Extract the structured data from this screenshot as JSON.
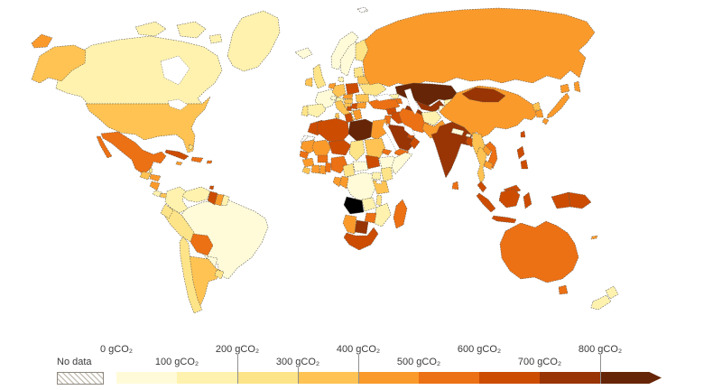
{
  "legend": {
    "no_data_label": "No data",
    "unit": "gCO₂",
    "top_labels": [
      "0 gCO₂",
      "200 gCO₂",
      "400 gCO₂",
      "600 gCO₂",
      "800 gCO₂"
    ],
    "bottom_labels": [
      "100 gCO₂",
      "300 gCO₂",
      "500 gCO₂",
      "700 gCO₂"
    ],
    "ticks": [
      200,
      300,
      400,
      800
    ],
    "bins": [
      {
        "range": "0-100",
        "color": "#fffbd9"
      },
      {
        "range": "100-200",
        "color": "#fff2ae"
      },
      {
        "range": "200-300",
        "color": "#fee488"
      },
      {
        "range": "300-400",
        "color": "#fec352"
      },
      {
        "range": "400-500",
        "color": "#fa9a2b"
      },
      {
        "range": "500-600",
        "color": "#ec7014"
      },
      {
        "range": "600-700",
        "color": "#cc4c02"
      },
      {
        "range": "700-800",
        "color": "#993404"
      },
      {
        "range": "800+",
        "color": "#662506"
      }
    ]
  },
  "map": {
    "water_color": "#ffffff",
    "countries": {
      "canada": 2,
      "greenland": 2,
      "usa": 4,
      "mexico": 6,
      "guatemala": 4,
      "belize": 3,
      "honduras": 5,
      "nicaragua": 5,
      "costa-rica": 2,
      "panama": 4,
      "cuba": 7,
      "jamaica": 5,
      "hispaniola": 6,
      "puerto-rico": 6,
      "bahamas": 3,
      "trinidad": 7,
      "colombia": 2,
      "venezuela": 2,
      "guyana": 7,
      "suriname": 5,
      "french-guiana": 2,
      "ecuador": 3,
      "peru": 3,
      "brazil": 1,
      "bolivia": 6,
      "paraguay": 1,
      "chile": 3,
      "argentina": 4,
      "uruguay": 3,
      "iceland": 1,
      "norway": 1,
      "sweden": 1,
      "finland": 3,
      "denmark": 2,
      "uk": 3,
      "ireland": 4,
      "france": 1,
      "spain": 2,
      "portugal": 3,
      "belgium-netherlands": 5,
      "germany": 4,
      "poland": 7,
      "czechia": 5,
      "austria": 2,
      "hungary": 4,
      "switzerland": 1,
      "italy": 4,
      "croatia": 4,
      "bosnia": 7,
      "serbia": 7,
      "albania": 2,
      "greece": 5,
      "bulgaria": 5,
      "romania": 4,
      "ukraine": 3,
      "belarus": 4,
      "baltic-states": 3,
      "russia": 5,
      "kazakhstan": 9,
      "uzbekistan": 8,
      "turkmenistan": 8,
      "kyrgyzstan": 2,
      "tajikistan": 1,
      "afghanistan": 2,
      "pakistan": 5,
      "georgia": 2,
      "armenia-azerbaijan": 6,
      "turkey": 6,
      "syria": 7,
      "iraq": 7,
      "jordan-israel": 6,
      "saudi-arabia": 8,
      "yemen": 6,
      "oman": 7,
      "uae": 7,
      "iran": 6,
      "india": 8,
      "nepal": 1,
      "bhutan": 1,
      "bangladesh": 7,
      "sri-lanka": 6,
      "myanmar": 4,
      "thailand": 4,
      "laos": 5,
      "vietnam": 6,
      "cambodia": 5,
      "malaysia": 7,
      "china": 5,
      "mongolia": 8,
      "north-korea": 4,
      "south-korea": 5,
      "japan": 5,
      "taiwan": 7,
      "philippines": 7,
      "indonesia": 7,
      "papua-new-guinea": 7,
      "australia": 6,
      "new-zealand": 2,
      "new-caledonia": 5,
      "morocco": 7,
      "western-sahara": "no-data",
      "algeria": 7,
      "tunisia": 7,
      "libya": 9,
      "egypt": 5,
      "mauritania": 5,
      "mali": 5,
      "niger": 7,
      "chad": 3,
      "sudan": 4,
      "eritrea": 6,
      "ethiopia": 1,
      "somalia": 1,
      "senegal": 6,
      "guinea": 5,
      "sierra-leone-liberia": 4,
      "ivory-coast": 5,
      "ghana": 5,
      "burkina-faso": 6,
      "togo-benin": 6,
      "nigeria": 6,
      "cameroon": 3,
      "central-african-republic": 1,
      "south-sudan": 7,
      "drc": 1,
      "congo": 5,
      "gabon": 5,
      "uganda": 2,
      "kenya": 3,
      "tanzania": 4,
      "malawi": 3,
      "zambia": 2,
      "mozambique": 2,
      "zimbabwe": 6,
      "botswana": 8,
      "namibia": 5,
      "south-africa": 7,
      "madagascar": 6,
      "svalbard": "no-data"
    }
  }
}
